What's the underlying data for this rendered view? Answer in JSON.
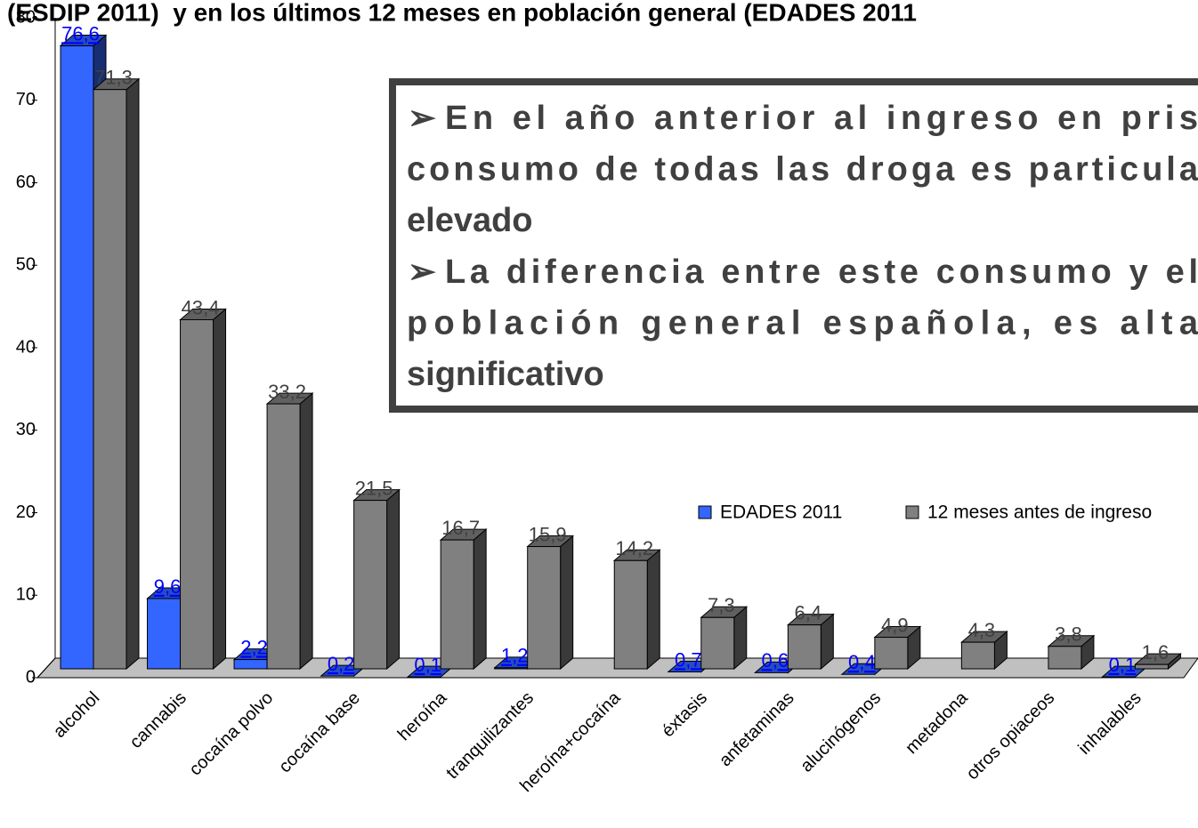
{
  "chart_data": {
    "type": "bar3d",
    "title": "(ESDIP 2011)  y en los últimos 12 meses en población general (EDADES 2011",
    "categories": [
      "alcohol",
      "cannabis",
      "cocaína polvo",
      "cocaína base",
      "heroína",
      "tranquilizantes",
      "heroína+cocaína",
      "éxtasis",
      "anfetaminas",
      "alucinógenos",
      "metadona",
      "otros opiaceos",
      "inhalables"
    ],
    "series": [
      {
        "name": "EDADES 2011",
        "color": "#3366ff",
        "label_color": "#0000ff",
        "values": [
          76.6,
          9.6,
          2.2,
          0.2,
          0.1,
          1.2,
          null,
          0.7,
          0.6,
          0.4,
          null,
          null,
          0.1
        ],
        "value_labels": [
          "76,6",
          "9,6",
          "2,2",
          "0,2",
          "0,1",
          "1,2",
          null,
          "0,7",
          "0,6",
          "0,4",
          null,
          null,
          "0,1"
        ]
      },
      {
        "name": "12 meses antes de ingreso",
        "color": "#808080",
        "label_color": "#404040",
        "values": [
          71.3,
          43.4,
          33.2,
          21.5,
          16.7,
          15.9,
          14.2,
          7.3,
          6.4,
          4.9,
          4.3,
          3.8,
          1.6
        ],
        "value_labels": [
          "71,3",
          "43,4",
          "33,2",
          "21,5",
          "16,7",
          "15,9",
          "14,2",
          "7,3",
          "6,4",
          "4,9",
          "4,3",
          "3,8",
          "1,6"
        ]
      }
    ],
    "ylim": [
      0,
      80
    ],
    "yticks": [
      0,
      10,
      20,
      30,
      40,
      50,
      60,
      70,
      80
    ],
    "annotation": [
      [
        "En el año anterior al ingreso en pris",
        "consumo de todas las droga es particula",
        "elevado"
      ],
      [
        "La diferencia entre este consumo y el",
        "población general española, es alta",
        "significativo"
      ]
    ]
  }
}
